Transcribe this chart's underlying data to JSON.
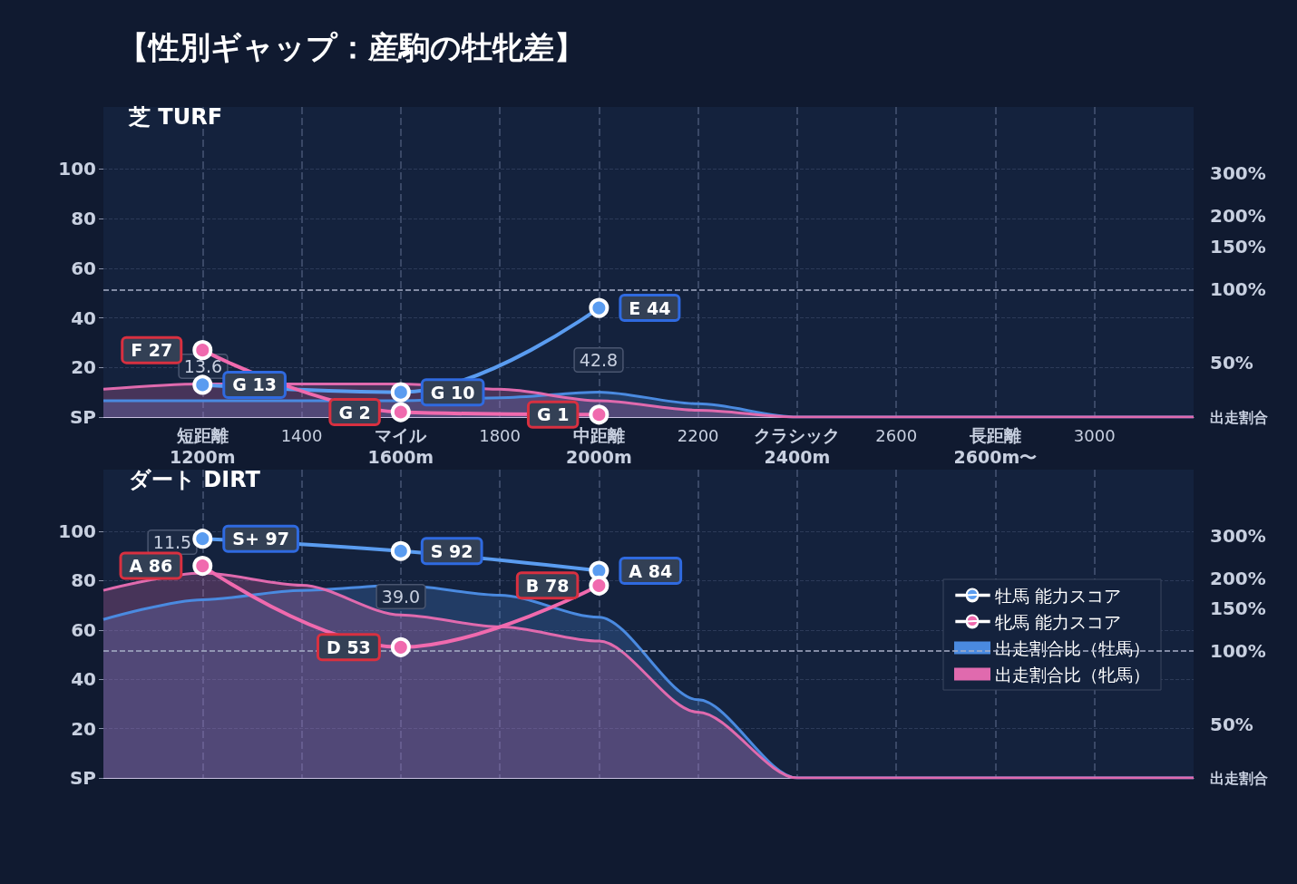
{
  "chart_data": [
    {
      "type": "line",
      "title": "【性別ギャップ：産駒の牡牝差】",
      "subtitle": "芝 TURF",
      "xlim": [
        1000,
        3200
      ],
      "xticks": [
        {
          "value": 1200,
          "label": "短距離\n1200m"
        },
        1400,
        {
          "value": 1600,
          "label": "マイル\n1600m"
        },
        1800,
        {
          "value": 2000,
          "label": "中距離\n2000m"
        },
        2200,
        {
          "value": 2400,
          "label": "クラシック\n2400m"
        },
        2600,
        {
          "value": 2800,
          "label": "長距離\n2600m〜"
        },
        3000
      ],
      "ylim": [
        0,
        125
      ],
      "yticks": [
        {
          "value": 0,
          "label": "SP"
        },
        20,
        40,
        60,
        80,
        100
      ],
      "y2label": "出走割合",
      "log": "y2",
      "y2lim": [
        30,
        560
      ],
      "y2ticks": [
        {
          "value": 50,
          "label": "50%"
        },
        {
          "value": 100,
          "label": "100%"
        },
        {
          "value": 150,
          "label": "150%"
        },
        {
          "value": 200,
          "label": "200%"
        },
        {
          "value": 300,
          "label": "300%"
        }
      ],
      "series": [
        {
          "color": "#5a9cf0",
          "marker": "circle",
          "x": [
            1200,
            1600,
            2000
          ],
          "values": [
            13,
            10,
            44
          ],
          "value_labels": [
            "G 13",
            "G 10",
            "E 44"
          ]
        },
        {
          "color": "#f06aae",
          "marker": "circle",
          "x": [
            1200,
            1600,
            2000
          ],
          "values": [
            27,
            2,
            1
          ],
          "value_labels": [
            "F 27",
            "G 2",
            "G 1"
          ]
        },
        {
          "type": "area",
          "axis": "y2",
          "color": "#4a8ae0",
          "x": [
            1000,
            1200,
            1400,
            1600,
            1800,
            2000,
            2200,
            2400,
            2600,
            2800,
            3000,
            3200
          ],
          "values": [
            35,
            35,
            35,
            35,
            36,
            38,
            34,
            30,
            30,
            30,
            30,
            30
          ]
        },
        {
          "type": "area",
          "axis": "y2",
          "color": "#e06aae",
          "x": [
            1000,
            1200,
            1400,
            1600,
            1800,
            2000,
            2200,
            2400,
            2600,
            2800,
            3000,
            3200
          ],
          "values": [
            39,
            41,
            41,
            41,
            39,
            35,
            32,
            30,
            30,
            30,
            30,
            30
          ]
        }
      ],
      "ref_lines": [
        {
          "axis": "y2",
          "value": 100,
          "line_style": "dashed"
        }
      ],
      "annotations": [
        "13.6",
        "42.8"
      ],
      "grid": true,
      "legend": false
    },
    {
      "type": "line",
      "title": "ダート DIRT",
      "xlim": [
        1000,
        3200
      ],
      "xticks": [
        1200,
        1400,
        1600,
        1800,
        2000,
        2200,
        2400,
        2600,
        2800,
        3000
      ],
      "ylim": [
        0,
        125
      ],
      "yticks": [
        {
          "value": 0,
          "label": "SP"
        },
        20,
        40,
        60,
        80,
        100
      ],
      "y2label": "出走割合",
      "log": "y2",
      "y2lim": [
        30,
        560
      ],
      "y2ticks": [
        {
          "value": 50,
          "label": "50%"
        },
        {
          "value": 100,
          "label": "100%"
        },
        {
          "value": 150,
          "label": "150%"
        },
        {
          "value": 200,
          "label": "200%"
        },
        {
          "value": 300,
          "label": "300%"
        }
      ],
      "series": [
        {
          "name": "牡馬 能力スコア",
          "color": "#5a9cf0",
          "marker": "circle",
          "x": [
            1200,
            1600,
            2000
          ],
          "values": [
            97,
            92,
            84
          ],
          "value_labels": [
            "S+ 97",
            "S 92",
            "A 84"
          ]
        },
        {
          "name": "牝馬 能力スコア",
          "color": "#f06aae",
          "marker": "circle",
          "x": [
            1200,
            1600,
            2000
          ],
          "values": [
            86,
            53,
            78
          ],
          "value_labels": [
            "A 86",
            "D 53",
            "B 78"
          ]
        },
        {
          "type": "area",
          "name": "出走割合比（牡馬）",
          "axis": "y2",
          "color": "#4a8ae0",
          "x": [
            1000,
            1200,
            1400,
            1600,
            1800,
            2000,
            2200,
            2400,
            2600,
            2800,
            3000,
            3200
          ],
          "values": [
            135,
            163,
            178,
            187,
            170,
            138,
            63,
            30,
            30,
            30,
            30,
            30
          ]
        },
        {
          "type": "area",
          "name": "出走割合比（牝馬）",
          "axis": "y2",
          "color": "#e06aae",
          "x": [
            1000,
            1200,
            1400,
            1600,
            1800,
            2000,
            2200,
            2400,
            2600,
            2800,
            3000,
            3200
          ],
          "values": [
            178,
            210,
            187,
            141,
            126,
            110,
            56,
            30,
            30,
            30,
            30,
            30
          ]
        }
      ],
      "ref_lines": [
        {
          "axis": "y2",
          "value": 100,
          "line_style": "dashed"
        }
      ],
      "annotations": [
        "11.5",
        "39.0"
      ],
      "grid": true,
      "legend": "right",
      "tick_labels": "y"
    }
  ]
}
